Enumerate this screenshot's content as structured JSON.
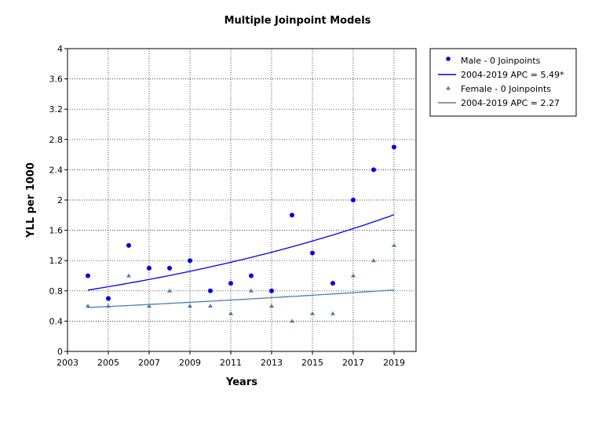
{
  "colors": {
    "male": "#0000ee",
    "female": "#4a7fb0",
    "grid": "#000000"
  },
  "chart_data": {
    "type": "scatter",
    "title": "Multiple Joinpoint Models",
    "xlabel": "Years",
    "ylabel": "YLL per 1000",
    "xlim": [
      2003,
      2020
    ],
    "ylim": [
      0,
      4
    ],
    "xticks": [
      "2003",
      "2005",
      "2007",
      "2009",
      "2011",
      "2013",
      "2015",
      "2017",
      "2019"
    ],
    "yticks": [
      "0",
      "0.4",
      "0.8",
      "1.2",
      "1.6",
      "2",
      "2.4",
      "2.8",
      "3.2",
      "3.6",
      "4"
    ],
    "grid": true,
    "legend_position": "top-right outside",
    "series": [
      {
        "name": "Male - 0 Joinpoints",
        "kind": "points",
        "marker": "circle",
        "color": "#0000ee",
        "x": [
          2004,
          2005,
          2006,
          2007,
          2008,
          2009,
          2010,
          2011,
          2012,
          2013,
          2014,
          2015,
          2016,
          2017,
          2018,
          2019
        ],
        "y": [
          1.0,
          0.7,
          1.4,
          1.1,
          1.1,
          1.2,
          0.8,
          0.9,
          1.0,
          0.8,
          1.8,
          1.3,
          0.9,
          2.0,
          2.4,
          2.7
        ]
      },
      {
        "name": "2004-2019 APC  = 5.49*",
        "kind": "trend",
        "color": "#0000ee",
        "x_start": 2004,
        "x_end": 2019,
        "y_start": 0.81,
        "apc": 5.49
      },
      {
        "name": "Female - 0 Joinpoints",
        "kind": "points",
        "marker": "triangle",
        "color": "#4a7fb0",
        "x": [
          2004,
          2005,
          2006,
          2007,
          2008,
          2009,
          2010,
          2011,
          2012,
          2013,
          2014,
          2015,
          2016,
          2017,
          2018,
          2019
        ],
        "y": [
          0.6,
          0.6,
          1.0,
          0.6,
          0.8,
          0.6,
          0.6,
          0.5,
          0.8,
          0.6,
          0.4,
          0.5,
          0.5,
          1.0,
          1.2,
          1.4
        ]
      },
      {
        "name": "2004-2019 APC  = 2.27",
        "kind": "trend",
        "color": "#4a7fb0",
        "x_start": 2004,
        "x_end": 2019,
        "y_start": 0.58,
        "apc": 2.27
      }
    ]
  }
}
